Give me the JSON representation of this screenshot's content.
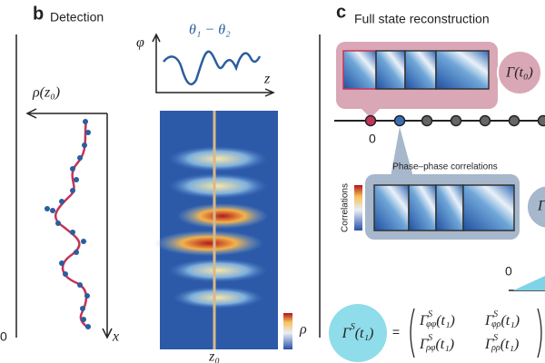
{
  "left_edge_label": "0",
  "panel_b": {
    "letter": "b",
    "title": "Detection",
    "phase_axis": "φ",
    "phase_label": "θ₁ − θ₂",
    "z_axis": "z",
    "profile_label": "ρ(z₀)",
    "x_axis": "x",
    "cut_label": "z₀",
    "colorbar_label": "ρ"
  },
  "panel_c": {
    "letter": "c",
    "title": "Full state reconstruction",
    "gamma_t0": "Γ(t₀)",
    "timeline_zero": "0",
    "callout_title": "Phase–phase correlations",
    "colorbar_label": "Correlations",
    "gamma_cut": "Γ",
    "lower_zero": "0",
    "equation": {
      "lhs": {
        "base": "Γ",
        "sup": "S",
        "arg": "(t₁)"
      },
      "equals": "=",
      "matrix": [
        [
          {
            "base": "Γ",
            "sup": "S",
            "sub": "φφ",
            "arg": "(t₁)"
          },
          {
            "base": "Γ",
            "sup": "S",
            "sub": "φρ",
            "arg": "(t₁)"
          }
        ],
        [
          {
            "base": "Γ",
            "sup": "S",
            "sub": "ρφ",
            "arg": "(t₁)"
          },
          {
            "base": "Γ",
            "sup": "S",
            "sub": "ρρ",
            "arg": "(t₁)"
          }
        ]
      ]
    }
  }
}
